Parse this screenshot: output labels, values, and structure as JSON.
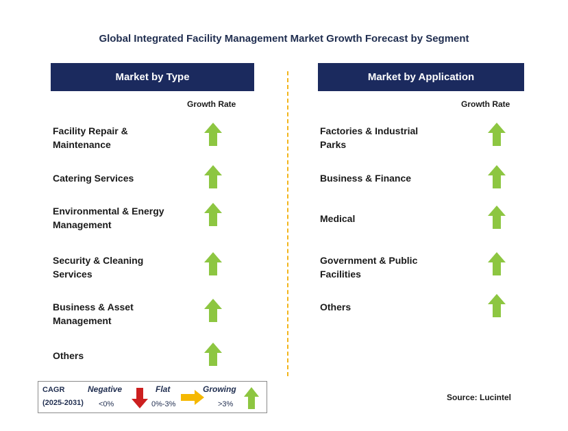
{
  "title": "Global Integrated Facility Management Market Growth Forecast by Segment",
  "panels": {
    "type": {
      "header": "Market by Type",
      "column_label": "Growth Rate",
      "items": [
        {
          "label": "Facility Repair &\nMaintenance",
          "trend": "growing"
        },
        {
          "label": "Catering Services",
          "trend": "growing"
        },
        {
          "label": "Environmental & Energy\nManagement",
          "trend": "growing"
        },
        {
          "label": "Security & Cleaning\nServices",
          "trend": "growing"
        },
        {
          "label": "Business & Asset\nManagement",
          "trend": "growing"
        },
        {
          "label": "Others",
          "trend": "growing"
        }
      ]
    },
    "application": {
      "header": "Market by Application",
      "column_label": "Growth Rate",
      "items": [
        {
          "label": "Factories & Industrial\nParks",
          "trend": "growing"
        },
        {
          "label": "Business & Finance",
          "trend": "growing"
        },
        {
          "label": "Medical",
          "trend": "growing"
        },
        {
          "label": "Government & Public\nFacilities",
          "trend": "growing"
        },
        {
          "label": "Others",
          "trend": "growing"
        }
      ]
    }
  },
  "legend": {
    "cagr": "CAGR",
    "period": "(2025-2031)",
    "negative": {
      "label": "Negative",
      "range": "<0%",
      "icon": "red-down-arrow-icon"
    },
    "flat": {
      "label": "Flat",
      "range": "0%-3%",
      "icon": "orange-right-arrow-icon"
    },
    "growing": {
      "label": "Growing",
      "range": ">3%",
      "icon": "green-up-arrow-icon"
    }
  },
  "source": "Source: Lucintel",
  "colors": {
    "header_bg": "#1b2a5e",
    "growing": "#8dc641",
    "negative": "#cc1f1f",
    "flat": "#f5b800",
    "divider": "#f2b418"
  }
}
